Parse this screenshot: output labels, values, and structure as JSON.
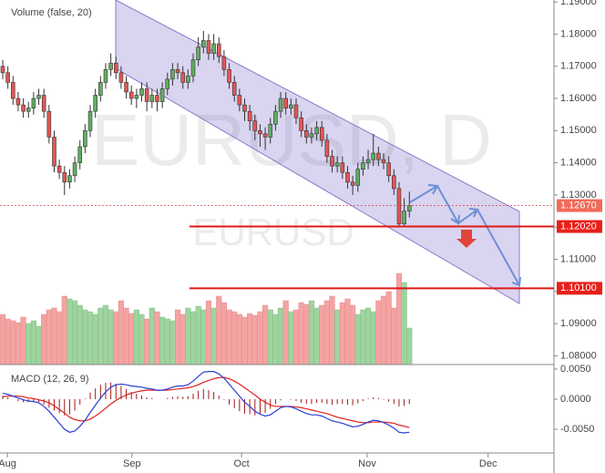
{
  "chart_data": {
    "type": "candlestick",
    "title": "EURUSD, D",
    "subtitle": "EURUSD",
    "volume_title": "Volume (false, 20)",
    "up_color": "#5fae5f",
    "down_color": "#e25656",
    "volume_up_color": "#9fd39f",
    "volume_down_color": "#f4a3a3",
    "x": [
      0,
      1,
      2,
      3,
      4,
      5,
      6,
      7,
      8,
      9,
      10,
      11,
      12,
      13,
      14,
      15,
      16,
      17,
      18,
      19,
      20,
      21,
      22,
      23,
      24,
      25,
      26,
      27,
      28,
      29,
      30,
      31,
      32,
      33,
      34,
      35,
      36,
      37,
      38,
      39,
      40,
      41,
      42,
      43,
      44,
      45,
      46,
      47,
      48,
      49,
      50,
      51,
      52,
      53,
      54,
      55,
      56,
      57,
      58,
      59,
      60,
      61,
      62,
      63,
      64,
      65,
      66,
      67,
      68,
      69,
      70,
      71,
      72,
      73,
      74,
      75,
      76,
      77,
      78,
      79
    ],
    "xlim": [
      -0.53,
      107.1
    ],
    "xticks": [
      {
        "value": 0.9,
        "label": "Aug"
      },
      {
        "value": 25.1,
        "label": "Sep"
      },
      {
        "value": 46.4,
        "label": "Oct"
      },
      {
        "value": 70.8,
        "label": "Nov"
      },
      {
        "value": 94.3,
        "label": "Dec"
      }
    ],
    "ylim": [
      1.0773,
      1.1906
    ],
    "yticks": [
      {
        "value": 1.08,
        "label": "1.08000"
      },
      {
        "value": 1.09,
        "label": "1.09000"
      },
      {
        "value": 1.1,
        "label": "1.10000"
      },
      {
        "value": 1.11,
        "label": "1.11000"
      },
      {
        "value": 1.12,
        "label": "1.12000"
      },
      {
        "value": 1.13,
        "label": "1.13000"
      },
      {
        "value": 1.14,
        "label": "1.14000"
      },
      {
        "value": 1.15,
        "label": "1.15000"
      },
      {
        "value": 1.16,
        "label": "1.16000"
      },
      {
        "value": 1.17,
        "label": "1.17000"
      },
      {
        "value": 1.18,
        "label": "1.18000"
      },
      {
        "value": 1.19,
        "label": "1.19000"
      }
    ],
    "open": [
      1.17,
      1.168,
      1.165,
      1.16,
      1.158,
      1.156,
      1.157,
      1.16,
      1.161,
      1.156,
      1.148,
      1.139,
      1.137,
      1.134,
      1.136,
      1.14,
      1.145,
      1.15,
      1.156,
      1.161,
      1.165,
      1.169,
      1.171,
      1.168,
      1.165,
      1.162,
      1.16,
      1.161,
      1.163,
      1.159,
      1.161,
      1.159,
      1.163,
      1.166,
      1.169,
      1.168,
      1.165,
      1.167,
      1.172,
      1.176,
      1.178,
      1.174,
      1.177,
      1.173,
      1.169,
      1.165,
      1.161,
      1.158,
      1.156,
      1.153,
      1.15,
      1.149,
      1.148,
      1.152,
      1.156,
      1.16,
      1.157,
      1.158,
      1.154,
      1.15,
      1.148,
      1.149,
      1.151,
      1.147,
      1.142,
      1.139,
      1.14,
      1.137,
      1.134,
      1.133,
      1.138,
      1.14,
      1.141,
      1.143,
      1.141,
      1.14,
      1.136,
      1.132,
      1.121,
      1.125
    ],
    "high": [
      1.172,
      1.17,
      1.167,
      1.162,
      1.16,
      1.159,
      1.162,
      1.163,
      1.163,
      1.158,
      1.15,
      1.141,
      1.139,
      1.138,
      1.142,
      1.147,
      1.152,
      1.158,
      1.163,
      1.167,
      1.171,
      1.174,
      1.173,
      1.17,
      1.167,
      1.164,
      1.163,
      1.165,
      1.165,
      1.163,
      1.163,
      1.165,
      1.168,
      1.171,
      1.171,
      1.17,
      1.169,
      1.174,
      1.179,
      1.181,
      1.18,
      1.18,
      1.179,
      1.175,
      1.171,
      1.167,
      1.163,
      1.16,
      1.158,
      1.155,
      1.152,
      1.151,
      1.154,
      1.158,
      1.162,
      1.162,
      1.16,
      1.16,
      1.156,
      1.152,
      1.151,
      1.153,
      1.153,
      1.149,
      1.144,
      1.142,
      1.142,
      1.139,
      1.136,
      1.14,
      1.142,
      1.144,
      1.149,
      1.145,
      1.143,
      1.142,
      1.138,
      1.134,
      1.129,
      1.131
    ],
    "low": [
      1.166,
      1.163,
      1.158,
      1.156,
      1.154,
      1.154,
      1.155,
      1.158,
      1.154,
      1.146,
      1.137,
      1.135,
      1.13,
      1.132,
      1.134,
      1.138,
      1.143,
      1.148,
      1.154,
      1.159,
      1.163,
      1.167,
      1.166,
      1.163,
      1.16,
      1.158,
      1.157,
      1.159,
      1.156,
      1.157,
      1.156,
      1.157,
      1.161,
      1.164,
      1.166,
      1.163,
      1.163,
      1.165,
      1.17,
      1.174,
      1.172,
      1.172,
      1.171,
      1.167,
      1.163,
      1.159,
      1.156,
      1.153,
      1.15,
      1.147,
      1.145,
      1.144,
      1.146,
      1.15,
      1.154,
      1.155,
      1.155,
      1.152,
      1.148,
      1.146,
      1.146,
      1.147,
      1.145,
      1.14,
      1.137,
      1.137,
      1.135,
      1.132,
      1.13,
      1.131,
      1.136,
      1.138,
      1.139,
      1.139,
      1.138,
      1.134,
      1.13,
      1.12,
      1.12,
      1.123
    ],
    "close": [
      1.168,
      1.165,
      1.16,
      1.158,
      1.156,
      1.157,
      1.16,
      1.161,
      1.156,
      1.148,
      1.139,
      1.137,
      1.134,
      1.136,
      1.14,
      1.145,
      1.15,
      1.156,
      1.161,
      1.165,
      1.169,
      1.171,
      1.168,
      1.165,
      1.162,
      1.16,
      1.161,
      1.163,
      1.159,
      1.161,
      1.159,
      1.163,
      1.166,
      1.169,
      1.168,
      1.165,
      1.167,
      1.172,
      1.176,
      1.178,
      1.174,
      1.177,
      1.173,
      1.169,
      1.165,
      1.161,
      1.158,
      1.156,
      1.153,
      1.15,
      1.149,
      1.148,
      1.152,
      1.156,
      1.16,
      1.157,
      1.158,
      1.154,
      1.15,
      1.148,
      1.149,
      1.151,
      1.147,
      1.142,
      1.139,
      1.14,
      1.137,
      1.134,
      1.133,
      1.138,
      1.14,
      1.141,
      1.143,
      1.141,
      1.14,
      1.136,
      1.132,
      1.121,
      1.125,
      1.1267
    ],
    "volume": [
      55,
      50,
      48,
      46,
      52,
      45,
      48,
      42,
      55,
      60,
      62,
      58,
      75,
      72,
      70,
      65,
      60,
      58,
      55,
      62,
      65,
      60,
      58,
      70,
      62,
      56,
      60,
      55,
      50,
      62,
      58,
      52,
      50,
      48,
      60,
      55,
      62,
      58,
      64,
      60,
      70,
      62,
      75,
      68,
      60,
      58,
      55,
      52,
      56,
      54,
      58,
      65,
      60,
      55,
      62,
      70,
      58,
      60,
      68,
      66,
      70,
      62,
      65,
      70,
      75,
      60,
      68,
      72,
      65,
      55,
      60,
      62,
      58,
      70,
      75,
      80,
      62,
      100,
      90,
      40
    ],
    "levels": [
      {
        "value": 1.1267,
        "label": "1.12670",
        "dashed": true
      },
      {
        "value": 1.1202,
        "label": "1.12020",
        "dashed": false
      },
      {
        "value": 1.101,
        "label": "1.10100",
        "dashed": false
      }
    ],
    "macd": {
      "title": "MACD (12, 26, 9)",
      "ylim": [
        -0.00894,
        0.00576
      ],
      "yticks": [
        {
          "value": 0.005,
          "label": "0.0050"
        },
        {
          "value": 0,
          "label": "0.0000"
        },
        {
          "value": -0.005,
          "label": "-0.0050"
        }
      ],
      "macd_line": {
        "color": "#2a3fd6",
        "values": [
          0.001,
          0.0008,
          0.0005,
          0.0002,
          -0.0001,
          -0.0003,
          -0.0004,
          -0.0006,
          -0.0012,
          -0.002,
          -0.003,
          -0.004,
          -0.005,
          -0.0055,
          -0.0053,
          -0.0045,
          -0.0035,
          -0.0022,
          -0.001,
          0.0002,
          0.0012,
          0.002,
          0.0024,
          0.0025,
          0.0024,
          0.0022,
          0.0021,
          0.002,
          0.0018,
          0.0017,
          0.0015,
          0.0015,
          0.0017,
          0.002,
          0.0022,
          0.0022,
          0.0024,
          0.003,
          0.0038,
          0.0045,
          0.0046,
          0.0046,
          0.0042,
          0.0035,
          0.0025,
          0.0015,
          0.0005,
          -0.0005,
          -0.0012,
          -0.002,
          -0.0025,
          -0.0028,
          -0.0026,
          -0.002,
          -0.0014,
          -0.0012,
          -0.0013,
          -0.0016,
          -0.002,
          -0.0024,
          -0.0026,
          -0.0026,
          -0.0028,
          -0.0032,
          -0.0036,
          -0.0038,
          -0.004,
          -0.0043,
          -0.0046,
          -0.0045,
          -0.0042,
          -0.0038,
          -0.0035,
          -0.0036,
          -0.0039,
          -0.0043,
          -0.0048,
          -0.0055,
          -0.0056,
          -0.0055
        ]
      },
      "signal_line": {
        "color": "#e02020",
        "values": [
          0.0004,
          0.0005,
          0.0005,
          0.0005,
          0.0004,
          0.0002,
          0.0001,
          -0.0001,
          -0.0003,
          -0.0006,
          -0.0011,
          -0.0017,
          -0.0023,
          -0.003,
          -0.0034,
          -0.0036,
          -0.0036,
          -0.0033,
          -0.0028,
          -0.0022,
          -0.0015,
          -0.0008,
          -0.0002,
          0.0003,
          0.0007,
          0.001,
          0.0012,
          0.0014,
          0.0015,
          0.0015,
          0.0015,
          0.0015,
          0.0015,
          0.0016,
          0.0017,
          0.0018,
          0.0019,
          0.0021,
          0.0024,
          0.0028,
          0.0031,
          0.0034,
          0.0036,
          0.0036,
          0.0034,
          0.003,
          0.0025,
          0.0019,
          0.0013,
          0.0007,
          0.0,
          -0.0005,
          -0.001,
          -0.0012,
          -0.0012,
          -0.0012,
          -0.0012,
          -0.0013,
          -0.0014,
          -0.0016,
          -0.0018,
          -0.002,
          -0.0022,
          -0.0024,
          -0.0027,
          -0.003,
          -0.0032,
          -0.0034,
          -0.0036,
          -0.0038,
          -0.0039,
          -0.0039,
          -0.0038,
          -0.0038,
          -0.0038,
          -0.0039,
          -0.004,
          -0.0043,
          -0.0045,
          -0.0047
        ]
      },
      "histogram": {
        "color": "#a01818",
        "values": [
          0.0006,
          0.0003,
          0.0,
          -0.0003,
          -0.0005,
          -0.0005,
          -0.0005,
          -0.0005,
          -0.0009,
          -0.0014,
          -0.0019,
          -0.0023,
          -0.0027,
          -0.0025,
          -0.0019,
          -0.0009,
          0.0001,
          0.0011,
          0.0018,
          0.0024,
          0.0027,
          0.0028,
          0.0026,
          0.0022,
          0.0017,
          0.0012,
          0.0009,
          0.0006,
          0.0003,
          0.0002,
          0.0,
          0.0,
          0.0002,
          0.0004,
          0.0005,
          0.0004,
          0.0005,
          0.0009,
          0.0014,
          0.0017,
          0.0015,
          0.0012,
          0.0006,
          -0.0001,
          -0.0009,
          -0.0015,
          -0.002,
          -0.0024,
          -0.0025,
          -0.0027,
          -0.0025,
          -0.0023,
          -0.0016,
          -0.0008,
          -0.0002,
          0.0,
          -0.0001,
          -0.0003,
          -0.0006,
          -0.0008,
          -0.0008,
          -0.0006,
          -0.0006,
          -0.0008,
          -0.0009,
          -0.0008,
          -0.0008,
          -0.0009,
          -0.001,
          -0.0007,
          -0.0003,
          0.0001,
          0.0003,
          0.0002,
          -0.0001,
          -0.0004,
          -0.0008,
          -0.0012,
          -0.0011,
          -0.0008
        ]
      }
    }
  }
}
